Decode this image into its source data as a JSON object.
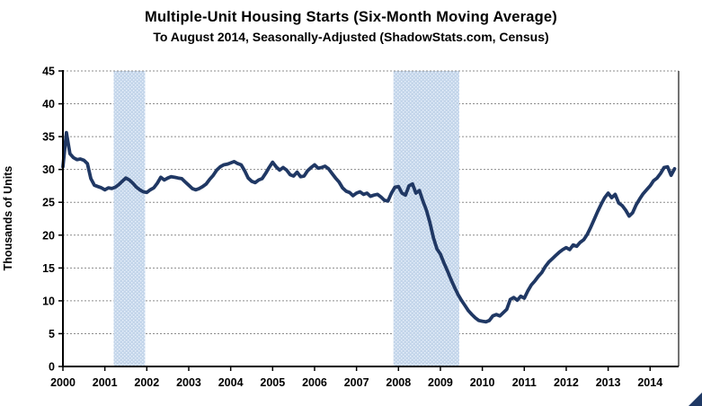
{
  "page": {
    "background": "#ffffff"
  },
  "header": {
    "title": "Multiple-Unit Housing Starts (Six-Month Moving Average)",
    "subtitle": "To August 2014, Seasonally-Adjusted (ShadowStats.com, Census)"
  },
  "chart_data": {
    "type": "line",
    "title": "Multiple-Unit Housing Starts (Six-Month Moving Average)",
    "subtitle": "To August 2014, Seasonally-Adjusted (ShadowStats.com, Census)",
    "xlabel": "",
    "ylabel": "Thousands of Units",
    "ylim": [
      0,
      45
    ],
    "yticks": [
      0,
      5,
      10,
      15,
      20,
      25,
      30,
      35,
      40,
      45
    ],
    "xlim": [
      2000,
      2014.68
    ],
    "xticks": [
      2000,
      2001,
      2002,
      2003,
      2004,
      2005,
      2006,
      2007,
      2008,
      2009,
      2010,
      2011,
      2012,
      2013,
      2014
    ],
    "xtick_labels": [
      "2000",
      "2001",
      "2002",
      "2003",
      "2004",
      "2005",
      "2006",
      "2007",
      "2008",
      "2009",
      "2010",
      "2011",
      "2012",
      "2013",
      "2014"
    ],
    "grid": "horizontal-dashed",
    "legend": "none",
    "recession_bands": [
      {
        "start": 2001.21,
        "end": 2001.96
      },
      {
        "start": 2007.88,
        "end": 2009.45
      }
    ],
    "series": [
      {
        "name": "Multiple-unit housing starts (six-month moving average)",
        "start_month": "2000-01",
        "end_month": "2014-08",
        "x_start": 2000.0,
        "x_step_years": 0.08333,
        "monthly_values": [
          30.4,
          35.6,
          32.4,
          31.8,
          31.5,
          31.6,
          31.4,
          30.9,
          28.6,
          27.6,
          27.4,
          27.2,
          26.9,
          27.2,
          27.1,
          27.3,
          27.7,
          28.2,
          28.7,
          28.4,
          27.9,
          27.3,
          26.9,
          26.6,
          26.5,
          26.9,
          27.2,
          27.9,
          28.8,
          28.4,
          28.7,
          28.9,
          28.8,
          28.7,
          28.6,
          28.1,
          27.6,
          27.1,
          26.9,
          27.1,
          27.4,
          27.8,
          28.5,
          29.1,
          29.9,
          30.4,
          30.7,
          30.8,
          31.0,
          31.2,
          30.9,
          30.7,
          29.8,
          28.7,
          28.2,
          28.0,
          28.4,
          28.6,
          29.4,
          30.3,
          31.1,
          30.4,
          29.9,
          30.3,
          29.9,
          29.2,
          29.0,
          29.6,
          28.9,
          29.0,
          29.8,
          30.3,
          30.7,
          30.2,
          30.3,
          30.5,
          30.1,
          29.4,
          28.7,
          28.1,
          27.2,
          26.7,
          26.5,
          26.0,
          26.4,
          26.6,
          26.2,
          26.4,
          25.9,
          26.1,
          26.2,
          25.8,
          25.3,
          25.2,
          26.4,
          27.3,
          27.4,
          26.4,
          26.1,
          27.5,
          27.8,
          26.4,
          26.8,
          25.2,
          23.8,
          21.9,
          19.6,
          17.9,
          17.1,
          15.8,
          14.6,
          13.3,
          12.1,
          11.0,
          10.1,
          9.3,
          8.5,
          7.9,
          7.4,
          7.0,
          6.9,
          6.8,
          7.0,
          7.7,
          7.9,
          7.7,
          8.2,
          8.7,
          10.2,
          10.5,
          10.1,
          10.7,
          10.4,
          11.5,
          12.4,
          13.0,
          13.7,
          14.3,
          15.2,
          15.9,
          16.4,
          16.9,
          17.4,
          17.8,
          18.1,
          17.8,
          18.5,
          18.3,
          18.9,
          19.3,
          20.1,
          21.2,
          22.4,
          23.6,
          24.7,
          25.7,
          26.4,
          25.7,
          26.2,
          24.9,
          24.5,
          23.8,
          22.9,
          23.4,
          24.6,
          25.5,
          26.3,
          26.9,
          27.5,
          28.3,
          28.7,
          29.4,
          30.3,
          30.4,
          29.1,
          30.1
        ]
      }
    ],
    "colors": {
      "line": "#203864",
      "band_base": "#c3d5ea",
      "band_dot": "#e7f0fb",
      "grid": "#8c8c8c",
      "axis": "#000000",
      "text": "#000000",
      "corner_mark": "#1f3864"
    }
  }
}
